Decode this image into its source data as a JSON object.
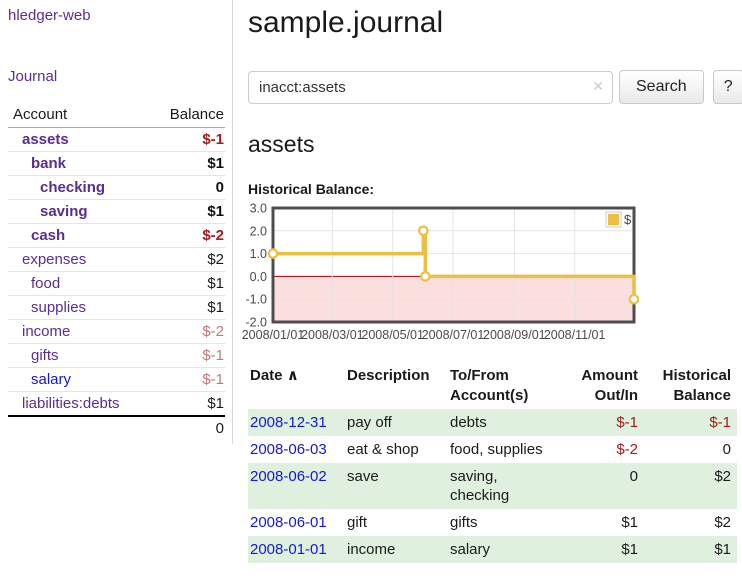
{
  "colors": {
    "link_purple": "#5b2c91",
    "link_blue": "#1717cf",
    "negative_strong": "#a11c1c",
    "negative_soft": "#bd7878",
    "row_green": "#dff0df",
    "chart_gold": "#e9c045",
    "chart_pink": "#fbdede",
    "chart_zero_red": "#a00000"
  },
  "sidebar": {
    "app_title": "hledger-web",
    "journal_label": "Journal",
    "accounts_table": {
      "headers": {
        "account": "Account",
        "balance": "Balance"
      },
      "rows": [
        {
          "name": "assets",
          "depth": 1,
          "bold": true,
          "balance": "$-1",
          "balance_class": "neg-strong"
        },
        {
          "name": "bank",
          "depth": 2,
          "bold": true,
          "balance": "$1",
          "balance_class": "pos-strong"
        },
        {
          "name": "checking",
          "depth": 3,
          "bold": true,
          "balance": "0",
          "balance_class": "pos-strong"
        },
        {
          "name": "saving",
          "depth": 3,
          "bold": true,
          "balance": "$1",
          "balance_class": "pos-strong"
        },
        {
          "name": "cash",
          "depth": 2,
          "bold": true,
          "balance": "$-2",
          "balance_class": "neg-strong"
        },
        {
          "name": "expenses",
          "depth": 1,
          "bold": false,
          "balance": "$2",
          "balance_class": "pos"
        },
        {
          "name": "food",
          "depth": 2,
          "bold": false,
          "balance": "$1",
          "balance_class": "pos"
        },
        {
          "name": "supplies",
          "depth": 2,
          "bold": false,
          "balance": "$1",
          "balance_class": "pos"
        },
        {
          "name": "income",
          "depth": 1,
          "bold": false,
          "balance": "$-2",
          "balance_class": "neg-soft"
        },
        {
          "name": "gifts",
          "depth": 2,
          "bold": false,
          "balance": "$-1",
          "balance_class": "neg-soft"
        },
        {
          "name": "salary",
          "depth": 2,
          "bold": false,
          "unvisited": true,
          "balance": "$-1",
          "balance_class": "neg-soft"
        },
        {
          "name": "liabilities:debts",
          "depth": 1,
          "bold": false,
          "balance": "$1",
          "balance_class": "pos"
        }
      ],
      "total": "0"
    }
  },
  "main": {
    "title": "sample.journal",
    "search": {
      "value": "inacct:assets",
      "clear_icon": "✕",
      "button_label": "Search",
      "help_label": "?"
    },
    "register": {
      "heading": "assets",
      "chart_label": "Historical Balance:",
      "table": {
        "headers": [
          {
            "label": "Date",
            "sort_icon": "∧"
          },
          {
            "label": "Description"
          },
          {
            "label": "To/From Account(s)"
          },
          {
            "label": "Amount Out/In"
          },
          {
            "label": "Historical Balance"
          }
        ],
        "rows": [
          {
            "date": "2008-12-31",
            "description": "pay off",
            "accounts": "debts",
            "amount": "$-1",
            "amount_neg": true,
            "balance": "$-1",
            "balance_neg": true
          },
          {
            "date": "2008-06-03",
            "description": "eat & shop",
            "accounts": "food, supplies",
            "amount": "$-2",
            "amount_neg": true,
            "balance": "0",
            "balance_neg": false
          },
          {
            "date": "2008-06-02",
            "description": "save",
            "accounts": "saving, checking",
            "amount": "0",
            "amount_neg": false,
            "balance": "$2",
            "balance_neg": false
          },
          {
            "date": "2008-06-01",
            "description": "gift",
            "accounts": "gifts",
            "amount": "$1",
            "amount_neg": false,
            "balance": "$2",
            "balance_neg": false
          },
          {
            "date": "2008-01-01",
            "description": "income",
            "accounts": "salary",
            "amount": "$1",
            "amount_neg": false,
            "balance": "$1",
            "balance_neg": false
          }
        ]
      }
    }
  },
  "chart_data": {
    "type": "line",
    "title": "Historical Balance",
    "step": true,
    "x_start": "2008-01-01",
    "x_end": "2008-12-31",
    "ylim": [
      -2,
      3
    ],
    "ytick_labels": [
      "3.0",
      "2.0",
      "1.0",
      "0.0",
      "-1.0",
      "-2.0"
    ],
    "xticks": [
      "2008/01/01",
      "2008/03/01",
      "2008/05/01",
      "2008/07/01",
      "2008/09/01",
      "2008/11/01"
    ],
    "series": [
      {
        "name": "$",
        "color": "#e9c045",
        "points": [
          [
            "2008-01-01",
            1
          ],
          [
            "2008-06-01",
            2
          ],
          [
            "2008-06-03",
            0
          ],
          [
            "2008-12-31",
            -1
          ]
        ]
      }
    ],
    "legend_position": "top-right",
    "grid": true,
    "negative_region_color": "#fbdede",
    "zero_line_color": "#a00000",
    "border_color": "#4d4d4d",
    "grid_color": "#e4e4e4",
    "tick_label_color": "#4a4a4a"
  }
}
